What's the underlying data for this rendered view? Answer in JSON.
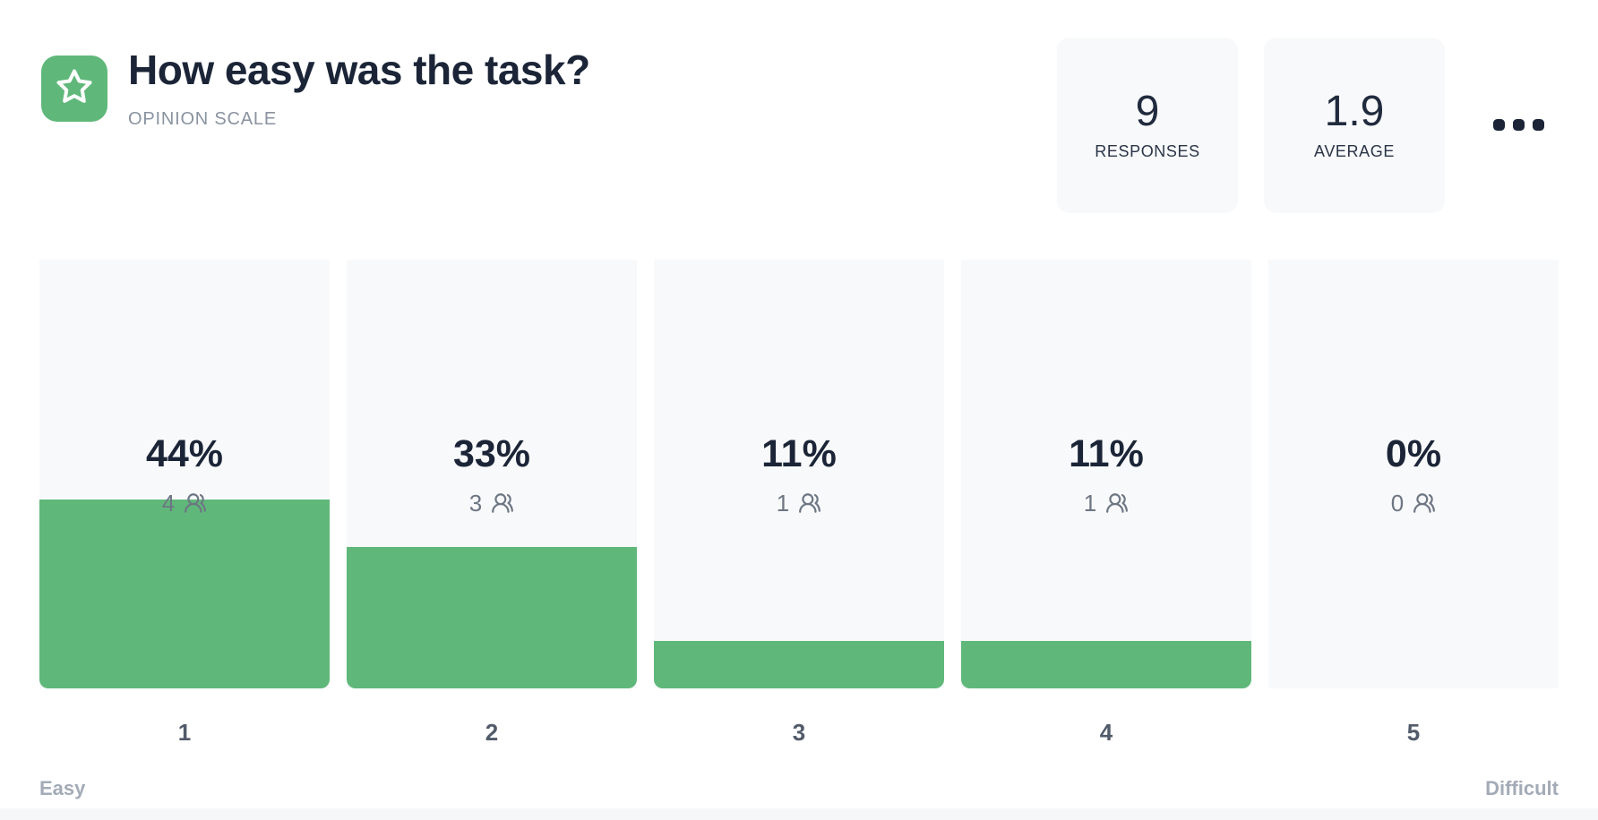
{
  "header": {
    "title": "How easy was the task?",
    "type_label": "OPINION SCALE",
    "icon": "star-icon"
  },
  "stats": [
    {
      "value": "9",
      "label": "RESPONSES"
    },
    {
      "value": "1.9",
      "label": "AVERAGE"
    }
  ],
  "menu": {
    "icon": "ellipsis-icon"
  },
  "chart_data": {
    "type": "bar",
    "title": "How easy was the task?",
    "subtitle": "OPINION SCALE",
    "categories": [
      "1",
      "2",
      "3",
      "4",
      "5"
    ],
    "values_percent": [
      44,
      33,
      11,
      11,
      0
    ],
    "counts": [
      4,
      3,
      1,
      1,
      0
    ],
    "percent_labels": [
      "44%",
      "33%",
      "11%",
      "11%",
      "0%"
    ],
    "count_labels": [
      "4",
      "3",
      "1",
      "1",
      "0"
    ],
    "axis_left_label": "Easy",
    "axis_right_label": "Difficult",
    "responses_total": 9,
    "average": 1.9,
    "ylim": [
      0,
      100
    ],
    "grid": "off",
    "legend": "none",
    "bar_color": "#5fb87a",
    "track_color": "#f8f9fa"
  },
  "colors": {
    "accent_green": "#5fb87a",
    "text_dark": "#1b2537",
    "subtitle_gray": "#8a93a0",
    "count_gray": "#6d7683",
    "category_gray": "#525b6a",
    "endpoint_gray": "#a3abb6",
    "track_bg": "#f8f9fa",
    "card_bg": "#ffffff"
  }
}
